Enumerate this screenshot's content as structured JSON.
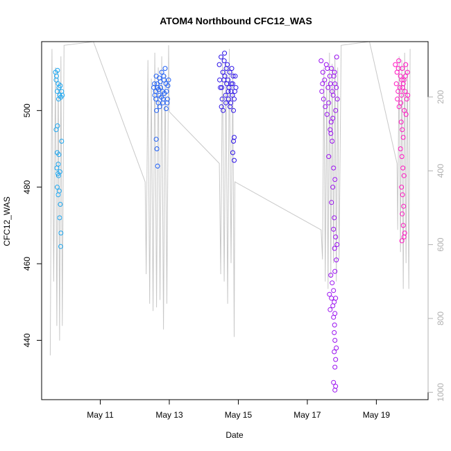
{
  "chart_data": {
    "type": "scatter",
    "title": "ATOM4 Northbound CFC12_WAS",
    "xlabel": "Date",
    "ylabel": "CFC12_WAS",
    "x_ticks": [
      "May 11",
      "May 13",
      "May 15",
      "May 17",
      "May 19"
    ],
    "x_tick_days": [
      11,
      13,
      15,
      17,
      19
    ],
    "xlim": [
      9.3,
      20.5
    ],
    "y_ticks": [
      440,
      460,
      480,
      500
    ],
    "ylim": [
      424.5,
      518
    ],
    "right_axis": {
      "ticks": [
        200,
        400,
        600,
        800,
        1000
      ],
      "lim": [
        50,
        1020
      ],
      "inverted": true,
      "color": "#b0b0b0"
    },
    "grid": false,
    "color_gradient": [
      "#1ba6f0",
      "#1a5cf5",
      "#2a10e8",
      "#9a10f0",
      "#ff14c0"
    ],
    "series": [
      {
        "flight_center_day": 9.85,
        "color": "#1ba6f0",
        "points": [
          [
            9.7,
            510
          ],
          [
            9.73,
            509
          ],
          [
            9.76,
            510.5
          ],
          [
            9.72,
            508
          ],
          [
            9.78,
            507
          ],
          [
            9.8,
            506
          ],
          [
            9.84,
            506.5
          ],
          [
            9.88,
            505
          ],
          [
            9.75,
            505
          ],
          [
            9.82,
            504
          ],
          [
            9.86,
            503.5
          ],
          [
            9.9,
            504
          ],
          [
            9.79,
            503
          ],
          [
            9.76,
            496
          ],
          [
            9.72,
            495
          ],
          [
            9.88,
            492
          ],
          [
            9.75,
            489
          ],
          [
            9.8,
            488.5
          ],
          [
            9.78,
            486
          ],
          [
            9.74,
            485
          ],
          [
            9.83,
            484
          ],
          [
            9.77,
            483.5
          ],
          [
            9.79,
            483
          ],
          [
            9.75,
            480
          ],
          [
            9.81,
            479
          ],
          [
            9.78,
            478
          ],
          [
            9.84,
            475.5
          ],
          [
            9.82,
            472
          ],
          [
            9.86,
            468
          ],
          [
            9.85,
            464.5
          ]
        ]
      },
      {
        "flight_center_day": 12.75,
        "color": "#1a5cf5",
        "points": [
          [
            12.55,
            506
          ],
          [
            12.6,
            505
          ],
          [
            12.65,
            507
          ],
          [
            12.7,
            504
          ],
          [
            12.75,
            506
          ],
          [
            12.8,
            505
          ],
          [
            12.85,
            508
          ],
          [
            12.9,
            507
          ],
          [
            12.95,
            503
          ],
          [
            12.58,
            504
          ],
          [
            12.62,
            509
          ],
          [
            12.68,
            502
          ],
          [
            12.72,
            501
          ],
          [
            12.78,
            510
          ],
          [
            12.82,
            503
          ],
          [
            12.88,
            511
          ],
          [
            12.92,
            505
          ],
          [
            12.98,
            508
          ],
          [
            12.63,
            500
          ],
          [
            12.66,
            506
          ],
          [
            12.74,
            507.5
          ],
          [
            12.84,
            509
          ],
          [
            12.94,
            502
          ],
          [
            12.57,
            507
          ],
          [
            12.69,
            505.5
          ],
          [
            12.77,
            503.5
          ],
          [
            12.86,
            504.5
          ],
          [
            12.96,
            506.5
          ],
          [
            12.61,
            503
          ],
          [
            12.71,
            508.5
          ],
          [
            12.81,
            502
          ],
          [
            12.91,
            500.5
          ],
          [
            12.62,
            492.5
          ],
          [
            12.64,
            490
          ],
          [
            12.66,
            485.5
          ]
        ]
      },
      {
        "flight_center_day": 14.7,
        "color": "#2a10e8",
        "points": [
          [
            14.45,
            512
          ],
          [
            14.5,
            514
          ],
          [
            14.55,
            510
          ],
          [
            14.6,
            515
          ],
          [
            14.65,
            511
          ],
          [
            14.7,
            508
          ],
          [
            14.75,
            510
          ],
          [
            14.8,
            507
          ],
          [
            14.85,
            509
          ],
          [
            14.9,
            505
          ],
          [
            14.48,
            506
          ],
          [
            14.53,
            503
          ],
          [
            14.58,
            508
          ],
          [
            14.63,
            504
          ],
          [
            14.68,
            512
          ],
          [
            14.73,
            506
          ],
          [
            14.78,
            502
          ],
          [
            14.83,
            504
          ],
          [
            14.88,
            503
          ],
          [
            14.93,
            506
          ],
          [
            14.51,
            501
          ],
          [
            14.56,
            500
          ],
          [
            14.61,
            509
          ],
          [
            14.66,
            507
          ],
          [
            14.71,
            505
          ],
          [
            14.76,
            501
          ],
          [
            14.81,
            511
          ],
          [
            14.86,
            500
          ],
          [
            14.46,
            508
          ],
          [
            14.52,
            506
          ],
          [
            14.59,
            513
          ],
          [
            14.64,
            502
          ],
          [
            14.72,
            503
          ],
          [
            14.79,
            505
          ],
          [
            14.84,
            507
          ],
          [
            14.91,
            509
          ],
          [
            14.88,
            493
          ],
          [
            14.86,
            492
          ],
          [
            14.84,
            489
          ],
          [
            14.88,
            487
          ]
        ]
      },
      {
        "flight_center_day": 17.7,
        "color": "#9a10f0",
        "points": [
          [
            17.4,
            513
          ],
          [
            17.45,
            510
          ],
          [
            17.5,
            508
          ],
          [
            17.55,
            512
          ],
          [
            17.6,
            506
          ],
          [
            17.65,
            509
          ],
          [
            17.7,
            511
          ],
          [
            17.75,
            504
          ],
          [
            17.8,
            507
          ],
          [
            17.85,
            514
          ],
          [
            17.42,
            505
          ],
          [
            17.47,
            503
          ],
          [
            17.52,
            501
          ],
          [
            17.57,
            499
          ],
          [
            17.62,
            502
          ],
          [
            17.67,
            507
          ],
          [
            17.72,
            505
          ],
          [
            17.77,
            509
          ],
          [
            17.82,
            500
          ],
          [
            17.87,
            503
          ],
          [
            17.44,
            507
          ],
          [
            17.58,
            511
          ],
          [
            17.69,
            497
          ],
          [
            17.74,
            498
          ],
          [
            17.79,
            510
          ],
          [
            17.84,
            506
          ],
          [
            17.66,
            495
          ],
          [
            17.68,
            494
          ],
          [
            17.62,
            488
          ],
          [
            17.72,
            492
          ],
          [
            17.76,
            485
          ],
          [
            17.8,
            482
          ],
          [
            17.74,
            480
          ],
          [
            17.7,
            476
          ],
          [
            17.78,
            472
          ],
          [
            17.76,
            469
          ],
          [
            17.82,
            467
          ],
          [
            17.86,
            465
          ],
          [
            17.79,
            464
          ],
          [
            17.84,
            461
          ],
          [
            17.8,
            458
          ],
          [
            17.68,
            457
          ],
          [
            17.72,
            455
          ],
          [
            17.76,
            453
          ],
          [
            17.64,
            452
          ],
          [
            17.7,
            451
          ],
          [
            17.78,
            450
          ],
          [
            17.82,
            451
          ],
          [
            17.74,
            449
          ],
          [
            17.8,
            447
          ],
          [
            17.66,
            448
          ],
          [
            17.76,
            446
          ],
          [
            17.79,
            444
          ],
          [
            17.78,
            442
          ],
          [
            17.8,
            440
          ],
          [
            17.84,
            438
          ],
          [
            17.78,
            437
          ],
          [
            17.82,
            435
          ],
          [
            17.8,
            433
          ],
          [
            17.76,
            429
          ],
          [
            17.82,
            428
          ],
          [
            17.8,
            427
          ]
        ]
      },
      {
        "flight_center_day": 19.75,
        "color": "#ff14c0",
        "points": [
          [
            19.55,
            512
          ],
          [
            19.6,
            510
          ],
          [
            19.65,
            513
          ],
          [
            19.7,
            509
          ],
          [
            19.75,
            511
          ],
          [
            19.8,
            508
          ],
          [
            19.85,
            512
          ],
          [
            19.9,
            510
          ],
          [
            19.58,
            507
          ],
          [
            19.63,
            505
          ],
          [
            19.68,
            506
          ],
          [
            19.73,
            504
          ],
          [
            19.78,
            507
          ],
          [
            19.83,
            505
          ],
          [
            19.88,
            503
          ],
          [
            19.61,
            503
          ],
          [
            19.66,
            501
          ],
          [
            19.71,
            502
          ],
          [
            19.76,
            506
          ],
          [
            19.81,
            500
          ],
          [
            19.86,
            499
          ],
          [
            19.91,
            504
          ],
          [
            19.64,
            511
          ],
          [
            19.74,
            508
          ],
          [
            19.84,
            509
          ],
          [
            19.72,
            497
          ],
          [
            19.75,
            495
          ],
          [
            19.78,
            493
          ],
          [
            19.7,
            490
          ],
          [
            19.74,
            488
          ],
          [
            19.77,
            485
          ],
          [
            19.8,
            483
          ],
          [
            19.73,
            480
          ],
          [
            19.76,
            478
          ],
          [
            19.79,
            475
          ],
          [
            19.75,
            473
          ],
          [
            19.78,
            470
          ],
          [
            19.82,
            468
          ],
          [
            19.74,
            466
          ],
          [
            19.8,
            467
          ]
        ]
      }
    ],
    "altitude_trace": [
      [
        9.55,
        900
      ],
      [
        9.6,
        70
      ],
      [
        9.65,
        700
      ],
      [
        9.7,
        120
      ],
      [
        9.74,
        820
      ],
      [
        9.78,
        130
      ],
      [
        9.82,
        860
      ],
      [
        9.86,
        90
      ],
      [
        9.9,
        820
      ],
      [
        9.95,
        60
      ],
      [
        10.8,
        40
      ],
      [
        12.3,
        430
      ],
      [
        12.33,
        680
      ],
      [
        12.38,
        100
      ],
      [
        12.43,
        760
      ],
      [
        12.48,
        150
      ],
      [
        12.53,
        780
      ],
      [
        12.58,
        80
      ],
      [
        12.63,
        770
      ],
      [
        12.68,
        120
      ],
      [
        12.73,
        750
      ],
      [
        12.78,
        90
      ],
      [
        12.83,
        830
      ],
      [
        12.88,
        140
      ],
      [
        12.93,
        760
      ],
      [
        12.98,
        60
      ],
      [
        13.0,
        240
      ],
      [
        14.45,
        380
      ],
      [
        14.49,
        680
      ],
      [
        14.54,
        90
      ],
      [
        14.59,
        700
      ],
      [
        14.64,
        110
      ],
      [
        14.69,
        760
      ],
      [
        14.74,
        70
      ],
      [
        14.79,
        650
      ],
      [
        14.84,
        130
      ],
      [
        14.88,
        850
      ],
      [
        14.9,
        430
      ],
      [
        17.4,
        560
      ],
      [
        17.44,
        640
      ],
      [
        17.48,
        120
      ],
      [
        17.52,
        700
      ],
      [
        17.56,
        150
      ],
      [
        17.6,
        720
      ],
      [
        17.64,
        80
      ],
      [
        17.68,
        690
      ],
      [
        17.72,
        110
      ],
      [
        17.76,
        650
      ],
      [
        17.8,
        90
      ],
      [
        17.84,
        700
      ],
      [
        17.88,
        120
      ],
      [
        17.92,
        640
      ],
      [
        17.98,
        60
      ],
      [
        18.8,
        40
      ],
      [
        19.6,
        380
      ],
      [
        19.62,
        560
      ],
      [
        19.66,
        90
      ],
      [
        19.7,
        620
      ],
      [
        19.74,
        100
      ],
      [
        19.78,
        720
      ],
      [
        19.82,
        80
      ],
      [
        19.86,
        650
      ],
      [
        19.9,
        110
      ],
      [
        19.94,
        720
      ],
      [
        19.98,
        70
      ]
    ]
  }
}
